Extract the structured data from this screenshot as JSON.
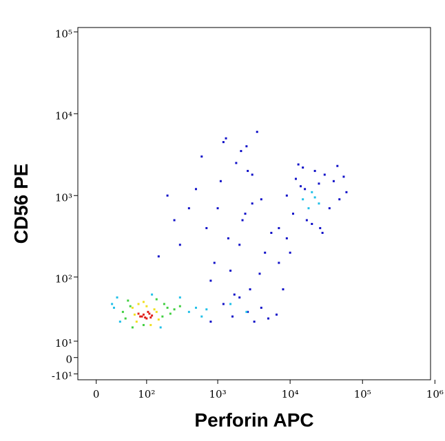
{
  "chart_data": {
    "type": "scatter",
    "xlabel": "Perforin APC",
    "ylabel": "CD56 PE",
    "xscale": "biexponential",
    "yscale": "biexponential",
    "xlim": [
      -26,
      870000
    ],
    "ylim": [
      -14,
      113000
    ],
    "xticks": [
      0,
      {
        "value": 100,
        "label": "10²"
      },
      {
        "value": 1000,
        "label": "10³"
      },
      {
        "value": 10000,
        "label": "10⁴"
      },
      {
        "value": 100000,
        "label": "10⁵"
      },
      {
        "value": 1000000,
        "label": "10⁶"
      }
    ],
    "yticks": [
      {
        "value": -10,
        "label": "-10¹"
      },
      0,
      {
        "value": 10,
        "label": "10¹"
      },
      {
        "value": 100,
        "label": "10²"
      },
      {
        "value": 1000,
        "label": "10³"
      },
      {
        "value": 10000,
        "label": "10⁴"
      },
      {
        "value": 100000,
        "label": "10⁵"
      }
    ],
    "series": [
      {
        "color": "#1010c8",
        "x": [
          800,
          1200,
          1600,
          2000,
          2600,
          3200,
          4000,
          5000,
          6500,
          900,
          1400,
          2200,
          3000,
          4500,
          7000,
          1100,
          1800,
          2500,
          3500,
          600,
          500,
          1000,
          1500,
          2000,
          3000,
          4000,
          5500,
          7000,
          1300,
          2400,
          800,
          1700,
          2800,
          3800,
          1200,
          2100,
          700,
          2600,
          9000,
          12000,
          15000,
          22000,
          30000,
          40000,
          11000,
          17000,
          26000,
          35000,
          48000,
          14000,
          20000,
          28000,
          13000,
          45000,
          60000,
          400,
          300,
          250,
          150,
          200,
          16000,
          25000,
          55000,
          9000,
          10000,
          8000
        ],
        "y": [
          25,
          45,
          30,
          55,
          35,
          25,
          40,
          28,
          32,
          150,
          300,
          500,
          800,
          200,
          400,
          1500,
          2500,
          4000,
          6000,
          3000,
          1200,
          700,
          120,
          250,
          1800,
          900,
          350,
          150,
          5000,
          600,
          90,
          60,
          70,
          110,
          4500,
          3500,
          400,
          2000,
          1000,
          1600,
          2200,
          2000,
          1800,
          1500,
          600,
          500,
          400,
          700,
          900,
          1300,
          450,
          350,
          2400,
          2300,
          1100,
          700,
          250,
          500,
          180,
          1000,
          1200,
          1400,
          1700,
          300,
          200,
          70
        ],
        "size": 3
      },
      {
        "color": "#20c0e8",
        "x": [
          30,
          35,
          120,
          400,
          500,
          600,
          300,
          25,
          160,
          22,
          700,
          15000,
          20000,
          25000,
          18000,
          22000,
          1500,
          2500
        ],
        "y": [
          55,
          25,
          60,
          35,
          40,
          30,
          55,
          40,
          20,
          45,
          38,
          900,
          1100,
          800,
          700,
          950,
          45,
          35
        ],
        "size": 3
      },
      {
        "color": "#40d040",
        "x": [
          40,
          50,
          170,
          200,
          60,
          180,
          45,
          250,
          300,
          220,
          55,
          140,
          90
        ],
        "y": [
          35,
          50,
          30,
          40,
          20,
          45,
          28,
          38,
          42,
          33,
          42,
          52,
          22
        ],
        "size": 3
      },
      {
        "color": "#f0e020",
        "x": [
          60,
          70,
          130,
          150,
          75,
          140,
          115,
          90,
          65,
          100
        ],
        "y": [
          40,
          25,
          38,
          27,
          45,
          35,
          22,
          48,
          32,
          42
        ],
        "size": 3
      },
      {
        "color": "#e0201b",
        "x": [
          80,
          90,
          100,
          110,
          120,
          95,
          105,
          85,
          115,
          75
        ],
        "y": [
          30,
          32,
          28,
          33,
          31,
          29,
          35,
          30,
          29,
          33
        ],
        "size": 3
      }
    ]
  }
}
